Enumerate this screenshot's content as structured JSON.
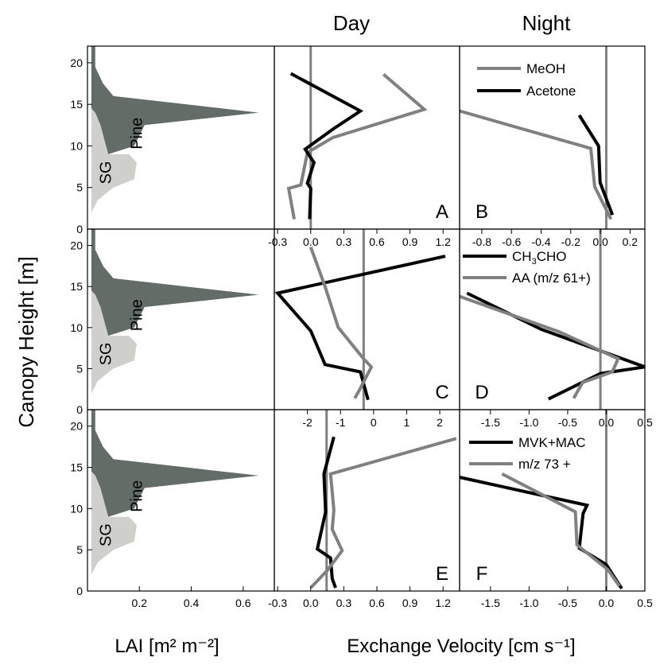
{
  "figure": {
    "column_titles": [
      "Day",
      "Night"
    ],
    "ylabel": "Canopy Height [m]",
    "xlabel_lai": "LAI [m² m⁻²]",
    "xlabel_ev": "Exchange Velocity [cm s⁻¹]"
  },
  "chart_data": [
    {
      "panel": "lai",
      "row": 0,
      "type": "area",
      "xlim": [
        0,
        0.72
      ],
      "ylim": [
        0,
        22
      ],
      "x_ticks": [
        0.2,
        0.4,
        0.6
      ],
      "x_tick_labels": [
        "0.2",
        "0.4",
        "0.6"
      ],
      "y_ticks": [
        5,
        10,
        15,
        20
      ],
      "y_tick_labels": [
        "5",
        "10",
        "15",
        "20"
      ],
      "series": [
        {
          "label": "Pine",
          "color": "#646c68",
          "points": [
            [
              0.015,
              22
            ],
            [
              0.03,
              22
            ],
            [
              0.03,
              19.5
            ],
            [
              0.06,
              17.5
            ],
            [
              0.1,
              16
            ],
            [
              0.66,
              14
            ],
            [
              0.22,
              12.5
            ],
            [
              0.18,
              10
            ],
            [
              0.08,
              9
            ],
            [
              0.05,
              12.5
            ],
            [
              0.03,
              14
            ],
            [
              0.015,
              14.5
            ]
          ]
        },
        {
          "label": "SG",
          "color": "#cfcfcb",
          "points": [
            [
              0.015,
              14.5
            ],
            [
              0.03,
              14
            ],
            [
              0.05,
              12.5
            ],
            [
              0.08,
              9
            ],
            [
              0.16,
              9
            ],
            [
              0.19,
              8
            ],
            [
              0.18,
              6
            ],
            [
              0.1,
              5
            ],
            [
              0.04,
              3.5
            ],
            [
              0.015,
              2
            ]
          ]
        }
      ]
    },
    {
      "panel": "A",
      "row": 0,
      "type": "line",
      "xlim": [
        -0.33,
        1.35
      ],
      "ylim": [
        0,
        22
      ],
      "series": [
        {
          "name": "MeOH",
          "color": "#808080",
          "points": [
            [
              0.66,
              18.6
            ],
            [
              1.03,
              14.4
            ],
            [
              0.2,
              11
            ],
            [
              -0.03,
              9.2
            ],
            [
              -0.09,
              5.3
            ],
            [
              -0.2,
              4.9
            ],
            [
              -0.15,
              1.2
            ]
          ]
        },
        {
          "name": "Acetone",
          "color": "#000000",
          "points": [
            [
              -0.18,
              18.7
            ],
            [
              0.45,
              14.2
            ],
            [
              0.2,
              12
            ],
            [
              -0.05,
              9.6
            ],
            [
              0.03,
              8
            ],
            [
              -0.03,
              5.5
            ],
            [
              0.0,
              4.9
            ],
            [
              -0.01,
              1.2
            ]
          ]
        }
      ],
      "vline": 0.0
    },
    {
      "panel": "B",
      "row": 0,
      "type": "line",
      "xlim": [
        -1.9,
        0.5
      ],
      "ylim": [
        0,
        22
      ],
      "series": [
        {
          "name": "MeOH",
          "color": "#808080",
          "points": [
            [
              -1.9,
              14.2
            ],
            [
              -0.2,
              9.7
            ],
            [
              -0.15,
              5.1
            ],
            [
              0.06,
              1.2
            ]
          ]
        },
        {
          "name": "Acetone",
          "color": "#000000",
          "points": [
            [
              -0.35,
              13.7
            ],
            [
              -0.1,
              10
            ],
            [
              -0.08,
              5.6
            ],
            [
              0.08,
              1.7
            ]
          ]
        }
      ],
      "vline": 0.0
    },
    {
      "panel": "C",
      "row": 1,
      "type": "line",
      "xlim": [
        -0.33,
        1.35
      ],
      "ylim": [
        0,
        22
      ],
      "x_ticks": [
        -0.3,
        0,
        0.3,
        0.6,
        0.9,
        1.2
      ],
      "x_tick_labels": [
        "-0.3",
        "0.0",
        "0.3",
        "0.6",
        "0.9",
        "1.2"
      ],
      "series": [
        {
          "name": "CH3CHO",
          "color": "#000000",
          "points": [
            [
              1.22,
              18.7
            ],
            [
              -0.3,
              14.2
            ],
            [
              0.0,
              9.6
            ],
            [
              0.13,
              5.5
            ],
            [
              0.45,
              4.6
            ],
            [
              0.52,
              1.2
            ]
          ]
        },
        {
          "name": "AA (m/z 61+)",
          "color": "#808080",
          "points": [
            [
              0.0,
              19.8
            ],
            [
              0.13,
              15
            ],
            [
              0.25,
              10
            ],
            [
              0.48,
              6.2
            ],
            [
              0.55,
              5.2
            ],
            [
              0.45,
              2.6
            ],
            [
              0.4,
              1.4
            ]
          ]
        }
      ],
      "vline": 0.48
    },
    {
      "panel": "D",
      "row": 1,
      "type": "line",
      "xlim": [
        -0.95,
        0.3
      ],
      "ylim": [
        0,
        22
      ],
      "x_ticks": [
        -0.8,
        -0.6,
        -0.4,
        -0.2,
        0,
        0.2
      ],
      "x_tick_labels": [
        "-0.8",
        "-0.6",
        "-0.4",
        "-0.2",
        "0.0",
        "0.2"
      ],
      "series": [
        {
          "name": "CH3CHO",
          "color": "#000000",
          "points": [
            [
              -0.9,
              14.2
            ],
            [
              -0.4,
              9.8
            ],
            [
              0.3,
              5.2
            ],
            [
              0.0,
              4.4
            ],
            [
              -0.35,
              1.3
            ]
          ]
        },
        {
          "name": "AA (m/z 61+)",
          "color": "#808080",
          "points": [
            [
              -0.95,
              13.8
            ],
            [
              -0.28,
              9.5
            ],
            [
              0.12,
              6.2
            ],
            [
              0.08,
              4.6
            ],
            [
              -0.12,
              3.3
            ],
            [
              -0.18,
              1.4
            ]
          ]
        }
      ],
      "vline": 0.0
    },
    {
      "panel": "E",
      "row": 2,
      "type": "line",
      "xlim": [
        -3.0,
        2.6
      ],
      "ylim": [
        0,
        22
      ],
      "x_ticks": [
        -2,
        -1,
        0,
        1,
        2
      ],
      "x_tick_labels": [
        "-2",
        "-1",
        "0",
        "1",
        "2"
      ],
      "x2_ticks": [
        -0.3,
        0,
        0.3,
        0.6,
        0.9,
        1.2
      ],
      "x2_tick_labels": [
        "-0.3",
        "0.0",
        "0.3",
        "0.6",
        "0.9",
        "1.2"
      ],
      "series": [
        {
          "name": "MVK+MAC",
          "color": "#000000",
          "points": [
            [
              -1.2,
              18.7
            ],
            [
              -1.5,
              14.2
            ],
            [
              -1.45,
              9.6
            ],
            [
              -1.7,
              5.1
            ],
            [
              -1.3,
              4
            ],
            [
              -1.25,
              1.5
            ],
            [
              -1.15,
              0.4
            ]
          ]
        },
        {
          "name": "m/z 73 +",
          "color": "#808080",
          "points": [
            [
              2.5,
              18.5
            ],
            [
              -1.3,
              14.2
            ],
            [
              -1.2,
              9.8
            ],
            [
              -1.25,
              7.5
            ],
            [
              -0.95,
              4.9
            ],
            [
              -1.4,
              2.5
            ],
            [
              -1.9,
              0.4
            ]
          ]
        }
      ],
      "vline": -1.42
    },
    {
      "panel": "F",
      "row": 2,
      "type": "line",
      "xlim": [
        -1.9,
        0.5
      ],
      "ylim": [
        0,
        22
      ],
      "x_ticks": [
        -1.5,
        -1,
        -0.5,
        0,
        0.5
      ],
      "x_tick_labels": [
        "-1.5",
        "-1.0",
        "-0.5",
        "0.0",
        "0.5"
      ],
      "series": [
        {
          "name": "MVK+MAC",
          "color": "#000000",
          "points": [
            [
              -1.9,
              13.8
            ],
            [
              -0.25,
              10.4
            ],
            [
              -0.3,
              9.4
            ],
            [
              -0.35,
              5.2
            ],
            [
              0.0,
              3.2
            ],
            [
              0.2,
              0.3
            ]
          ]
        },
        {
          "name": "m/z 73 +",
          "color": "#808080",
          "points": [
            [
              -1.35,
              14.2
            ],
            [
              -0.4,
              9.6
            ],
            [
              -0.38,
              5.6
            ],
            [
              0.02,
              2.6
            ],
            [
              0.17,
              0.6
            ]
          ]
        }
      ],
      "vline": 0.0
    }
  ],
  "panel_letters": [
    "A",
    "B",
    "C",
    "D",
    "E",
    "F"
  ],
  "area_labels": {
    "pine": "Pine",
    "sg": "SG"
  },
  "legends": {
    "B": [
      "MeOH",
      "Acetone"
    ],
    "D": [
      "CH3CHO",
      "AA (m/z 61+)"
    ],
    "F": [
      "MVK+MAC",
      "m/z 73 +"
    ]
  }
}
